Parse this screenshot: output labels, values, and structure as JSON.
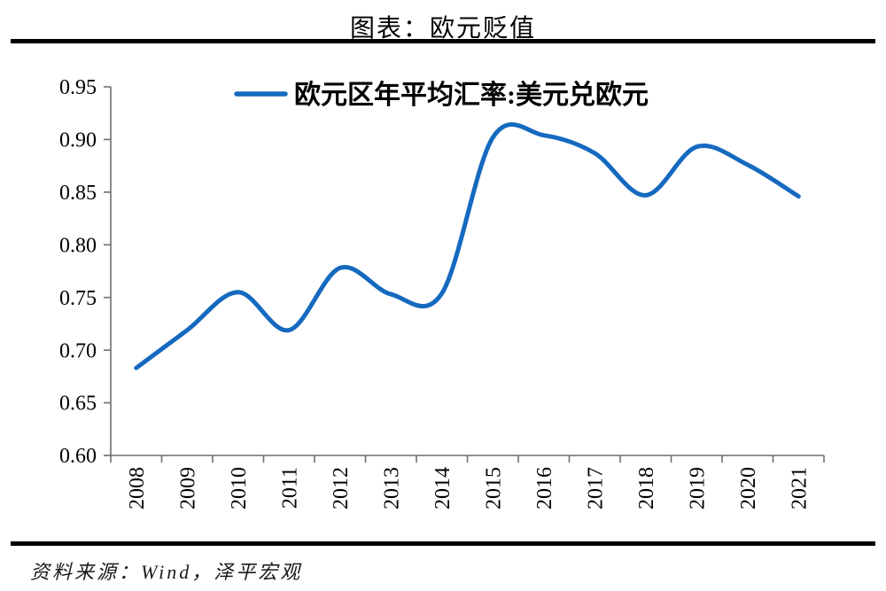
{
  "header": {
    "title": "图表：欧元贬值"
  },
  "footer": {
    "source": "资料来源：Wind，泽平宏观"
  },
  "chart_data": {
    "type": "line",
    "title": "图表：欧元贬值",
    "categories": [
      "2008",
      "2009",
      "2010",
      "2011",
      "2012",
      "2013",
      "2014",
      "2015",
      "2016",
      "2017",
      "2018",
      "2019",
      "2020",
      "2021"
    ],
    "series": [
      {
        "name": "欧元区年平均汇率:美元兑欧元",
        "color": "#1569bf",
        "values": [
          0.683,
          0.719,
          0.755,
          0.719,
          0.778,
          0.753,
          0.754,
          0.902,
          0.904,
          0.887,
          0.847,
          0.893,
          0.876,
          0.846
        ]
      }
    ],
    "xlabel": "",
    "ylabel": "",
    "ylim": [
      0.6,
      0.95
    ],
    "ytick_step": 0.05,
    "ytick_labels": [
      "0.60",
      "0.65",
      "0.70",
      "0.75",
      "0.80",
      "0.85",
      "0.90",
      "0.95"
    ],
    "x_labels_rotated_deg": -90,
    "grid": false,
    "smooth": true,
    "legend_position": "top-center",
    "axis_color": "#6e6e6e",
    "source": "资料来源：Wind，泽平宏观"
  }
}
